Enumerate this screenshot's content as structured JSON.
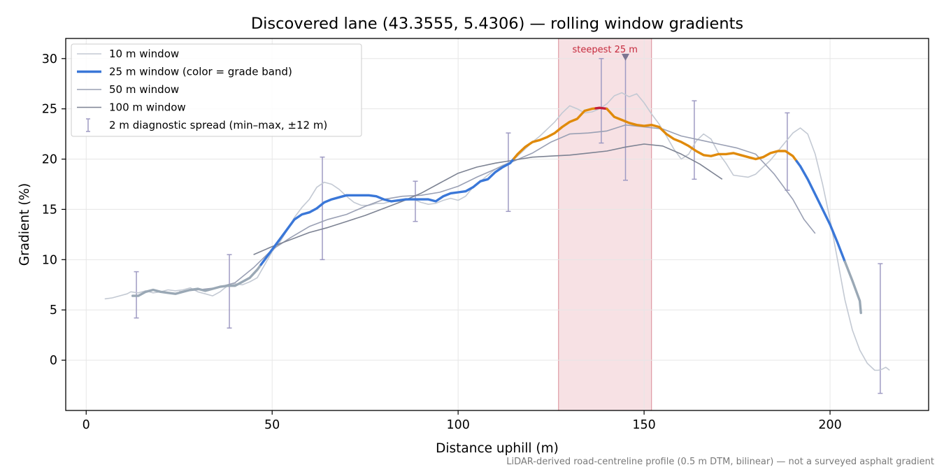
{
  "chart_data": {
    "type": "line",
    "title": "Discovered lane (43.3555, 5.4306) — rolling window gradients",
    "xlabel": "Distance uphill (m)",
    "ylabel": "Gradient (%)",
    "xlim": [
      -5.5,
      226.5
    ],
    "ylim": [
      -5,
      32
    ],
    "xticks": [
      0,
      50,
      100,
      150,
      200
    ],
    "yticks": [
      0,
      5,
      10,
      15,
      20,
      25,
      30
    ],
    "grid": true,
    "legend_position": "upper-left",
    "footnote": "LiDAR-derived road-centreline profile (0.5 m DTM, bilinear) — not a surveyed asphalt gradient",
    "highlight": {
      "label": "steepest 25 m",
      "x_range": [
        127,
        152
      ],
      "marker_x": 145,
      "marker_y": 30.2,
      "color": "#e8a5ad",
      "label_color": "#c62a3d"
    },
    "grade_band_colors": {
      "neutral": "#9aa8b5",
      "moderate": "#3a77d8",
      "steep": "#e08a0b",
      "extreme": "#c41e3a"
    },
    "series": [
      {
        "name": "10 m window",
        "color": "#c3c9d3",
        "points": [
          [
            5,
            6.1
          ],
          [
            7,
            6.2
          ],
          [
            9,
            6.4
          ],
          [
            11,
            6.6
          ],
          [
            12,
            6.8
          ],
          [
            14,
            6.7
          ],
          [
            16,
            6.9
          ],
          [
            18,
            6.7
          ],
          [
            20,
            6.8
          ],
          [
            22,
            7.0
          ],
          [
            24,
            6.9
          ],
          [
            26,
            7.0
          ],
          [
            28,
            7.2
          ],
          [
            30,
            6.8
          ],
          [
            32,
            6.6
          ],
          [
            34,
            6.4
          ],
          [
            36,
            6.8
          ],
          [
            38,
            7.4
          ],
          [
            40,
            7.6
          ],
          [
            42,
            7.5
          ],
          [
            44,
            7.8
          ],
          [
            46,
            8.2
          ],
          [
            48,
            9.5
          ],
          [
            50,
            10.8
          ],
          [
            52,
            11.7
          ],
          [
            54,
            12.9
          ],
          [
            56,
            14.2
          ],
          [
            58,
            15.2
          ],
          [
            60,
            16.0
          ],
          [
            62,
            17.2
          ],
          [
            64,
            17.7
          ],
          [
            66,
            17.5
          ],
          [
            68,
            17.0
          ],
          [
            70,
            16.3
          ],
          [
            72,
            15.7
          ],
          [
            74,
            15.4
          ],
          [
            76,
            15.4
          ],
          [
            78,
            15.6
          ],
          [
            80,
            15.6
          ],
          [
            82,
            15.8
          ],
          [
            84,
            15.8
          ],
          [
            86,
            15.9
          ],
          [
            88,
            16.0
          ],
          [
            90,
            15.7
          ],
          [
            92,
            15.5
          ],
          [
            94,
            15.6
          ],
          [
            96,
            15.9
          ],
          [
            98,
            16.1
          ],
          [
            100,
            15.9
          ],
          [
            102,
            16.3
          ],
          [
            104,
            17.2
          ],
          [
            106,
            17.8
          ],
          [
            108,
            18.4
          ],
          [
            110,
            19.0
          ],
          [
            112,
            19.4
          ],
          [
            114,
            19.7
          ],
          [
            116,
            20.3
          ],
          [
            118,
            21.0
          ],
          [
            120,
            21.7
          ],
          [
            122,
            22.3
          ],
          [
            124,
            23.0
          ],
          [
            126,
            23.7
          ],
          [
            128,
            24.6
          ],
          [
            130,
            25.3
          ],
          [
            132,
            25.0
          ],
          [
            134,
            24.6
          ],
          [
            136,
            24.7
          ],
          [
            138,
            25.0
          ],
          [
            140,
            25.5
          ],
          [
            142,
            26.3
          ],
          [
            144,
            26.6
          ],
          [
            146,
            26.2
          ],
          [
            148,
            26.5
          ],
          [
            150,
            25.6
          ],
          [
            152,
            24.5
          ],
          [
            154,
            23.5
          ],
          [
            156,
            22.3
          ],
          [
            158,
            21.0
          ],
          [
            160,
            20.0
          ],
          [
            162,
            20.5
          ],
          [
            164,
            21.8
          ],
          [
            166,
            22.5
          ],
          [
            168,
            22.0
          ],
          [
            170,
            20.6
          ],
          [
            172,
            19.6
          ],
          [
            174,
            18.4
          ],
          [
            176,
            18.3
          ],
          [
            178,
            18.2
          ],
          [
            180,
            18.5
          ],
          [
            182,
            19.2
          ],
          [
            184,
            19.9
          ],
          [
            186,
            20.8
          ],
          [
            188,
            21.7
          ],
          [
            190,
            22.6
          ],
          [
            192,
            23.1
          ],
          [
            194,
            22.5
          ],
          [
            196,
            20.5
          ],
          [
            198,
            17.5
          ],
          [
            200,
            14.0
          ],
          [
            202,
            10.0
          ],
          [
            204,
            6.0
          ],
          [
            206,
            3.0
          ],
          [
            208,
            1.0
          ],
          [
            210,
            -0.3
          ],
          [
            212,
            -1.0
          ],
          [
            213,
            -1.0
          ],
          [
            214,
            -0.9
          ],
          [
            215,
            -0.7
          ],
          [
            216,
            -1.0
          ]
        ]
      },
      {
        "name": "25 m window (color = grade band)",
        "color": "#3a77d8",
        "points": [
          [
            12.5,
            6.4
          ],
          [
            14,
            6.4
          ],
          [
            16,
            6.8
          ],
          [
            18,
            7.0
          ],
          [
            20,
            6.8
          ],
          [
            22,
            6.7
          ],
          [
            24,
            6.6
          ],
          [
            26,
            6.8
          ],
          [
            28,
            7.0
          ],
          [
            30,
            7.1
          ],
          [
            32,
            6.9
          ],
          [
            34,
            7.1
          ],
          [
            36,
            7.3
          ],
          [
            38,
            7.4
          ],
          [
            40,
            7.4
          ],
          [
            42,
            7.8
          ],
          [
            44,
            8.2
          ],
          [
            46,
            9.0
          ],
          [
            48,
            10.0
          ],
          [
            50,
            11.0
          ],
          [
            52,
            12.0
          ],
          [
            54,
            13.0
          ],
          [
            56,
            14.0
          ],
          [
            58,
            14.5
          ],
          [
            60,
            14.7
          ],
          [
            62,
            15.1
          ],
          [
            64,
            15.7
          ],
          [
            66,
            16.0
          ],
          [
            68,
            16.2
          ],
          [
            70,
            16.4
          ],
          [
            72,
            16.4
          ],
          [
            74,
            16.4
          ],
          [
            76,
            16.4
          ],
          [
            78,
            16.3
          ],
          [
            80,
            16.0
          ],
          [
            82,
            15.8
          ],
          [
            84,
            15.9
          ],
          [
            86,
            16.0
          ],
          [
            88,
            16.0
          ],
          [
            90,
            16.0
          ],
          [
            92,
            16.0
          ],
          [
            94,
            15.8
          ],
          [
            96,
            16.3
          ],
          [
            98,
            16.6
          ],
          [
            100,
            16.7
          ],
          [
            102,
            16.8
          ],
          [
            104,
            17.2
          ],
          [
            106,
            17.8
          ],
          [
            108,
            18.0
          ],
          [
            110,
            18.7
          ],
          [
            112,
            19.2
          ],
          [
            114,
            19.6
          ],
          [
            116,
            20.5
          ],
          [
            118,
            21.2
          ],
          [
            120,
            21.7
          ],
          [
            122,
            21.9
          ],
          [
            124,
            22.2
          ],
          [
            126,
            22.6
          ],
          [
            128,
            23.2
          ],
          [
            130,
            23.7
          ],
          [
            132,
            24.0
          ],
          [
            134,
            24.8
          ],
          [
            136,
            25.0
          ],
          [
            138,
            25.1
          ],
          [
            140,
            25.0
          ],
          [
            142,
            24.2
          ],
          [
            144,
            23.9
          ],
          [
            146,
            23.6
          ],
          [
            148,
            23.4
          ],
          [
            150,
            23.3
          ],
          [
            152,
            23.4
          ],
          [
            154,
            23.2
          ],
          [
            156,
            22.5
          ],
          [
            158,
            22.0
          ],
          [
            160,
            21.7
          ],
          [
            162,
            21.3
          ],
          [
            164,
            20.8
          ],
          [
            166,
            20.4
          ],
          [
            168,
            20.3
          ],
          [
            170,
            20.5
          ],
          [
            172,
            20.5
          ],
          [
            174,
            20.6
          ],
          [
            176,
            20.4
          ],
          [
            178,
            20.2
          ],
          [
            180,
            20.0
          ],
          [
            182,
            20.2
          ],
          [
            184,
            20.6
          ],
          [
            186,
            20.8
          ],
          [
            188,
            20.8
          ],
          [
            190,
            20.3
          ],
          [
            192,
            19.3
          ],
          [
            194,
            18.0
          ],
          [
            196,
            16.5
          ],
          [
            198,
            15.0
          ],
          [
            200,
            13.5
          ],
          [
            202,
            11.7
          ],
          [
            204,
            9.8
          ],
          [
            206,
            7.9
          ],
          [
            208,
            5.9
          ],
          [
            208.3,
            4.7
          ]
        ],
        "bands": [
          {
            "x_from": 12.5,
            "x_to": 47,
            "band": "neutral"
          },
          {
            "x_from": 47,
            "x_to": 115,
            "band": "moderate"
          },
          {
            "x_from": 115,
            "x_to": 137,
            "band": "steep"
          },
          {
            "x_from": 137,
            "x_to": 140,
            "band": "extreme"
          },
          {
            "x_from": 140,
            "x_to": 191,
            "band": "steep"
          },
          {
            "x_from": 191,
            "x_to": 204,
            "band": "moderate"
          },
          {
            "x_from": 204,
            "x_to": 208.3,
            "band": "neutral"
          }
        ]
      },
      {
        "name": "50 m window",
        "color": "#9aa0b4",
        "points": [
          [
            25,
            6.8
          ],
          [
            30,
            7.0
          ],
          [
            35,
            7.2
          ],
          [
            40,
            7.7
          ],
          [
            45,
            9.2
          ],
          [
            50,
            11.0
          ],
          [
            55,
            12.2
          ],
          [
            60,
            13.3
          ],
          [
            65,
            14.0
          ],
          [
            70,
            14.5
          ],
          [
            75,
            15.3
          ],
          [
            80,
            16.0
          ],
          [
            85,
            16.3
          ],
          [
            90,
            16.4
          ],
          [
            95,
            16.7
          ],
          [
            100,
            17.3
          ],
          [
            105,
            18.2
          ],
          [
            110,
            19.0
          ],
          [
            115,
            19.8
          ],
          [
            120,
            20.6
          ],
          [
            125,
            21.7
          ],
          [
            130,
            22.5
          ],
          [
            135,
            22.6
          ],
          [
            140,
            22.8
          ],
          [
            145,
            23.4
          ],
          [
            150,
            23.2
          ],
          [
            155,
            23.0
          ],
          [
            160,
            22.3
          ],
          [
            165,
            21.9
          ],
          [
            170,
            21.5
          ],
          [
            175,
            21.1
          ],
          [
            180,
            20.5
          ],
          [
            185,
            18.5
          ],
          [
            190,
            16.0
          ],
          [
            193,
            14.0
          ],
          [
            196,
            12.6
          ]
        ]
      },
      {
        "name": "100 m window",
        "color": "#7d8393",
        "points": [
          [
            45,
            10.5
          ],
          [
            50,
            11.3
          ],
          [
            55,
            12.0
          ],
          [
            60,
            12.7
          ],
          [
            65,
            13.2
          ],
          [
            70,
            13.8
          ],
          [
            75,
            14.4
          ],
          [
            80,
            15.1
          ],
          [
            85,
            15.8
          ],
          [
            90,
            16.6
          ],
          [
            95,
            17.6
          ],
          [
            100,
            18.6
          ],
          [
            105,
            19.2
          ],
          [
            110,
            19.6
          ],
          [
            115,
            19.9
          ],
          [
            120,
            20.2
          ],
          [
            125,
            20.3
          ],
          [
            130,
            20.4
          ],
          [
            135,
            20.6
          ],
          [
            140,
            20.8
          ],
          [
            145,
            21.2
          ],
          [
            150,
            21.5
          ],
          [
            155,
            21.3
          ],
          [
            160,
            20.5
          ],
          [
            165,
            19.5
          ],
          [
            171,
            18.0
          ]
        ]
      }
    ],
    "diagnostic_spread": {
      "name": "2 m diagnostic spread (min–max, ±12 m)",
      "color": "#9f9bc3",
      "bars": [
        {
          "x": 13.5,
          "min": 4.2,
          "max": 8.8
        },
        {
          "x": 38.5,
          "min": 3.2,
          "max": 10.5
        },
        {
          "x": 63.5,
          "min": 10.0,
          "max": 20.2
        },
        {
          "x": 88.5,
          "min": 13.8,
          "max": 17.8
        },
        {
          "x": 113.5,
          "min": 14.8,
          "max": 22.6
        },
        {
          "x": 138.5,
          "min": 21.6,
          "max": 30.0
        },
        {
          "x": 145,
          "min": 17.9,
          "max": 30.2
        },
        {
          "x": 163.5,
          "min": 18.0,
          "max": 25.8
        },
        {
          "x": 188.5,
          "min": 16.9,
          "max": 24.6
        },
        {
          "x": 213.5,
          "min": -3.3,
          "max": 9.6
        }
      ]
    }
  }
}
